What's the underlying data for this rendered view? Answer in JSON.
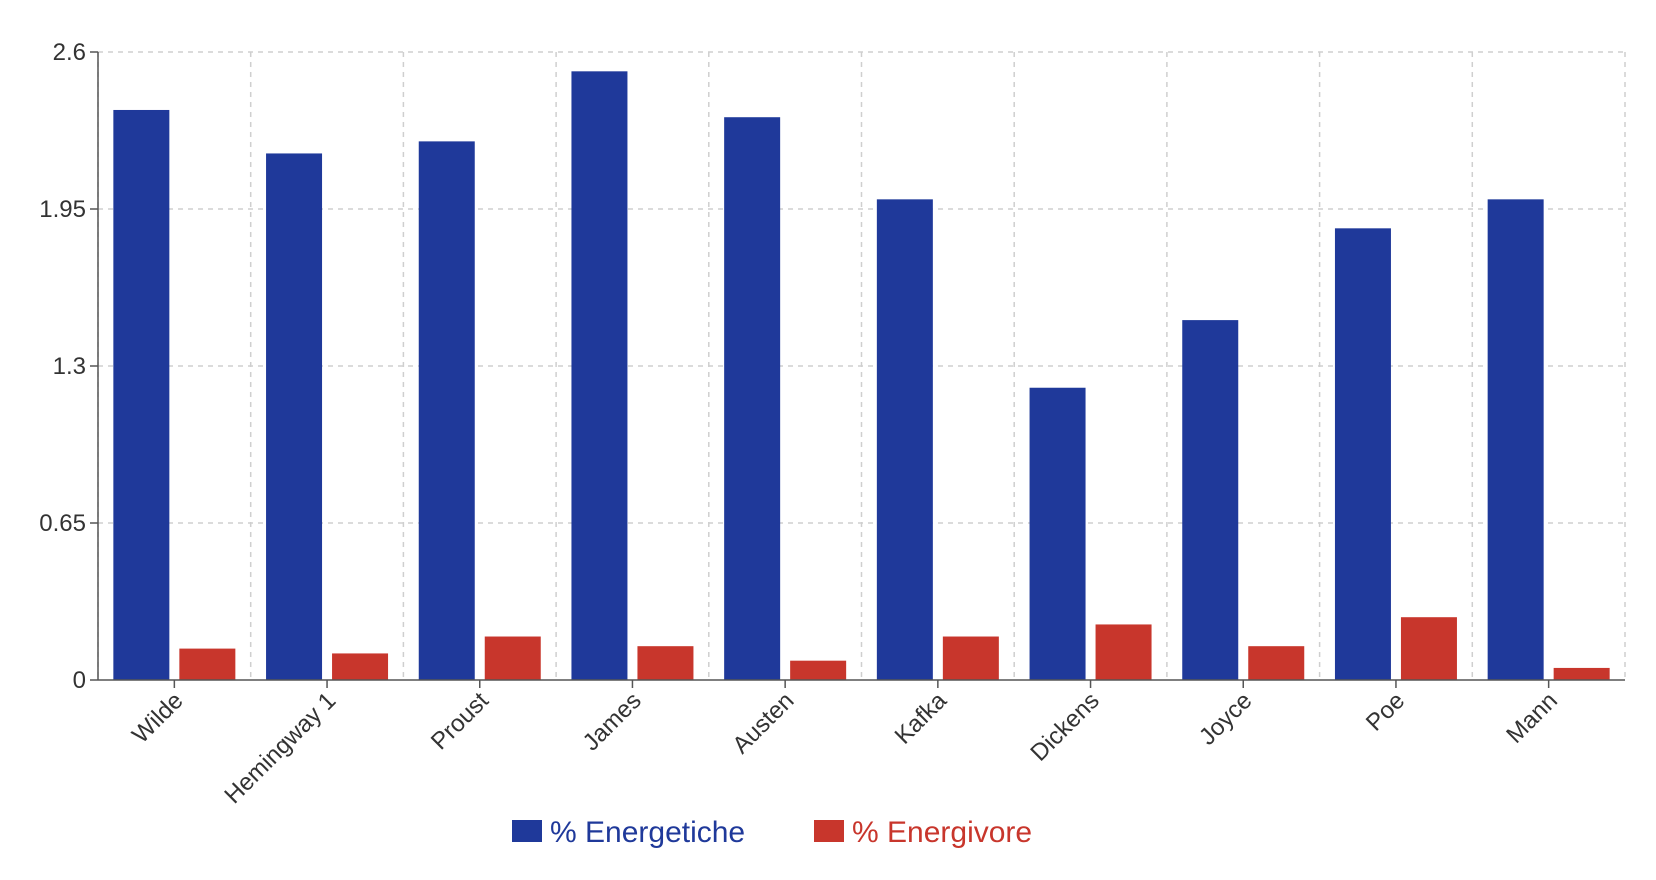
{
  "chart_data": {
    "type": "bar",
    "categories": [
      "Wilde",
      "Hemingway 1",
      "Proust",
      "James",
      "Austen",
      "Kafka",
      "Dickens",
      "Joyce",
      "Poe",
      "Mann"
    ],
    "series": [
      {
        "name": "% Energetiche",
        "color": "#1f399a",
        "values": [
          2.36,
          2.18,
          2.23,
          2.52,
          2.33,
          1.99,
          1.21,
          1.49,
          1.87,
          1.99
        ]
      },
      {
        "name": "% Energivore",
        "color": "#c8362c",
        "values": [
          0.13,
          0.11,
          0.18,
          0.14,
          0.08,
          0.18,
          0.23,
          0.14,
          0.26,
          0.05
        ]
      }
    ],
    "y_ticks": [
      "0",
      "0.65",
      "1.3",
      "1.95",
      "2.6"
    ],
    "ylim": [
      0,
      2.6
    ],
    "grid": true,
    "legend_position": "bottom-center"
  }
}
